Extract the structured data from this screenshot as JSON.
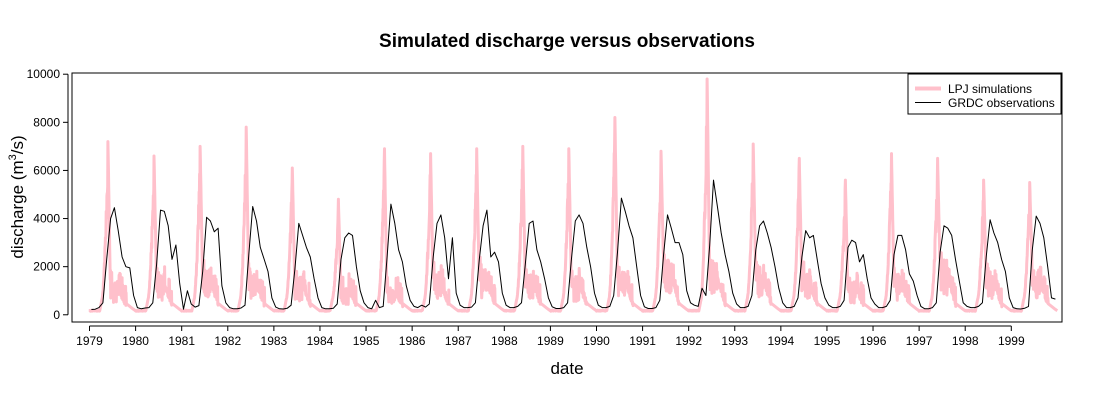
{
  "chart_data": {
    "type": "line",
    "title": "Simulated discharge versus observations",
    "xlabel": "date",
    "ylabel": "discharge (m³/s)",
    "ylabel_main": "discharge (m",
    "ylabel_sup": "3",
    "ylabel_tail": "/s)",
    "xlim": [
      1978.62,
      2000.1
    ],
    "ylim": [
      -300,
      10050
    ],
    "yticks": [
      0,
      2000,
      4000,
      6000,
      8000,
      10000
    ],
    "yticks_labels": [
      "0",
      "2000",
      "4000",
      "6000",
      "8000",
      "10000"
    ],
    "xticks": [
      1979,
      1980,
      1981,
      1982,
      1983,
      1984,
      1985,
      1986,
      1987,
      1988,
      1989,
      1990,
      1991,
      1992,
      1993,
      1994,
      1995,
      1996,
      1997,
      1998,
      1999
    ],
    "xticks_labels": [
      "1979",
      "1980",
      "1981",
      "1982",
      "1983",
      "1984",
      "1985",
      "1986",
      "1987",
      "1988",
      "1989",
      "1990",
      "1991",
      "1992",
      "1993",
      "1994",
      "1995",
      "1996",
      "1997",
      "1998",
      "1999"
    ],
    "legend_position": "top-right",
    "grid": false,
    "series": [
      {
        "name": "LPJ simulations",
        "color": "#FFC0CB",
        "annual_peaks": [
          7200,
          6600,
          7000,
          7800,
          6100,
          4800,
          6900,
          6700,
          6900,
          7000,
          6900,
          8200,
          6800,
          9800,
          7100,
          6500,
          5600,
          6700,
          6500,
          5600,
          5500
        ],
        "summer_values": [
          1400,
          1700,
          2000,
          1700,
          1600,
          1200,
          1200,
          1800,
          1900,
          1700,
          1600,
          2000,
          2500,
          2300,
          2000,
          1800,
          1400,
          1700,
          2300,
          1800,
          2000
        ]
      },
      {
        "name": "GRDC observations",
        "color": "#000000",
        "x_start": 1979.04,
        "x_step": 0.08333,
        "values": [
          220,
          230,
          300,
          500,
          2300,
          4000,
          4450,
          3500,
          2400,
          2000,
          1950,
          800,
          300,
          250,
          280,
          300,
          500,
          2100,
          4350,
          4300,
          3700,
          2300,
          2900,
          1300,
          230,
          1000,
          450,
          320,
          380,
          1800,
          4050,
          3900,
          3450,
          3600,
          1200,
          500,
          300,
          250,
          250,
          280,
          400,
          2500,
          4500,
          3900,
          2800,
          2300,
          1800,
          700,
          320,
          250,
          240,
          270,
          400,
          1900,
          3800,
          3300,
          2800,
          2400,
          1500,
          700,
          300,
          250,
          250,
          270,
          450,
          2300,
          3200,
          3400,
          3300,
          2000,
          1000,
          500,
          300,
          250,
          600,
          300,
          350,
          2400,
          4600,
          3800,
          2700,
          2200,
          1200,
          600,
          350,
          300,
          400,
          320,
          450,
          2400,
          3800,
          4150,
          3200,
          1500,
          3200,
          900,
          400,
          300,
          300,
          320,
          500,
          2300,
          3700,
          4350,
          2400,
          2600,
          2200,
          900,
          400,
          300,
          300,
          350,
          500,
          2100,
          3800,
          3900,
          2700,
          2200,
          1500,
          700,
          330,
          260,
          260,
          300,
          500,
          2300,
          3900,
          4150,
          3800,
          2800,
          2000,
          900,
          400,
          300,
          300,
          350,
          800,
          2600,
          4850,
          4300,
          3700,
          3200,
          2000,
          800,
          330,
          260,
          260,
          300,
          600,
          2500,
          4150,
          3600,
          3000,
          3000,
          2500,
          1000,
          500,
          400,
          350,
          1100,
          800,
          2900,
          5600,
          4500,
          3400,
          2500,
          1800,
          900,
          450,
          300,
          300,
          350,
          800,
          2700,
          3700,
          3900,
          3400,
          2800,
          2000,
          1100,
          500,
          300,
          300,
          350,
          700,
          2400,
          3500,
          3200,
          3300,
          2300,
          1300,
          700,
          400,
          300,
          300,
          350,
          600,
          2800,
          3100,
          3000,
          2200,
          2500,
          1500,
          700,
          450,
          300,
          300,
          350,
          600,
          2500,
          3300,
          3300,
          2700,
          1700,
          1400,
          800,
          350,
          250,
          250,
          300,
          500,
          2600,
          3700,
          3600,
          3300,
          2300,
          1400,
          500,
          350,
          300,
          300,
          350,
          500,
          2400,
          3950,
          3400,
          3000,
          2300,
          1800,
          700,
          300,
          250,
          240,
          270,
          350,
          2700,
          4100,
          3800,
          3200,
          2000,
          700,
          650
        ]
      }
    ]
  }
}
